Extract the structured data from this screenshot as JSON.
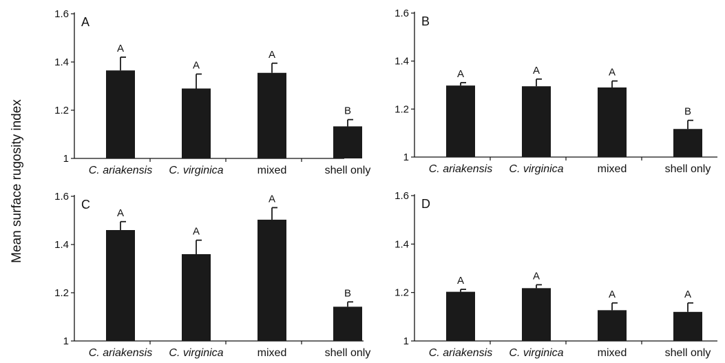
{
  "figure": {
    "ylabel": "Mean surface rugosity index"
  },
  "chart_data": [
    {
      "type": "bar",
      "panel_label": "A",
      "categories": [
        "C. ariakensis",
        "C. virginica",
        "mixed",
        "shell only"
      ],
      "values": [
        1.365,
        1.29,
        1.355,
        1.133
      ],
      "errors": [
        0.055,
        0.06,
        0.04,
        0.028
      ],
      "significance": [
        "A",
        "A",
        "A",
        "B"
      ],
      "yticks": [
        "1",
        "1.2",
        "1.4",
        "1.6"
      ],
      "ylim": [
        1,
        1.6
      ]
    },
    {
      "type": "bar",
      "panel_label": "B",
      "categories": [
        "C. ariakensis",
        "C. virginica",
        "mixed",
        "shell only"
      ],
      "values": [
        1.298,
        1.295,
        1.29,
        1.117
      ],
      "errors": [
        0.012,
        0.03,
        0.027,
        0.036
      ],
      "significance": [
        "A",
        "A",
        "A",
        "B"
      ],
      "yticks": [
        "1",
        "1.2",
        "1.4",
        "1.6"
      ],
      "ylim": [
        1,
        1.6
      ]
    },
    {
      "type": "bar",
      "panel_label": "C",
      "categories": [
        "C. ariakensis",
        "C. virginica",
        "mixed",
        "shell only"
      ],
      "values": [
        1.46,
        1.36,
        1.503,
        1.142
      ],
      "errors": [
        0.035,
        0.058,
        0.05,
        0.02
      ],
      "significance": [
        "A",
        "A",
        "A",
        "B"
      ],
      "yticks": [
        "1",
        "1.2",
        "1.4",
        "1.6"
      ],
      "ylim": [
        1,
        1.6
      ]
    },
    {
      "type": "bar",
      "panel_label": "D",
      "categories": [
        "C. ariakensis",
        "C. virginica",
        "mixed",
        "shell only"
      ],
      "values": [
        1.203,
        1.218,
        1.127,
        1.12
      ],
      "errors": [
        0.01,
        0.014,
        0.03,
        0.037
      ],
      "significance": [
        "A",
        "A",
        "A",
        "A"
      ],
      "yticks": [
        "1",
        "1.2",
        "1.4",
        "1.6"
      ],
      "ylim": [
        1,
        1.6
      ]
    }
  ]
}
